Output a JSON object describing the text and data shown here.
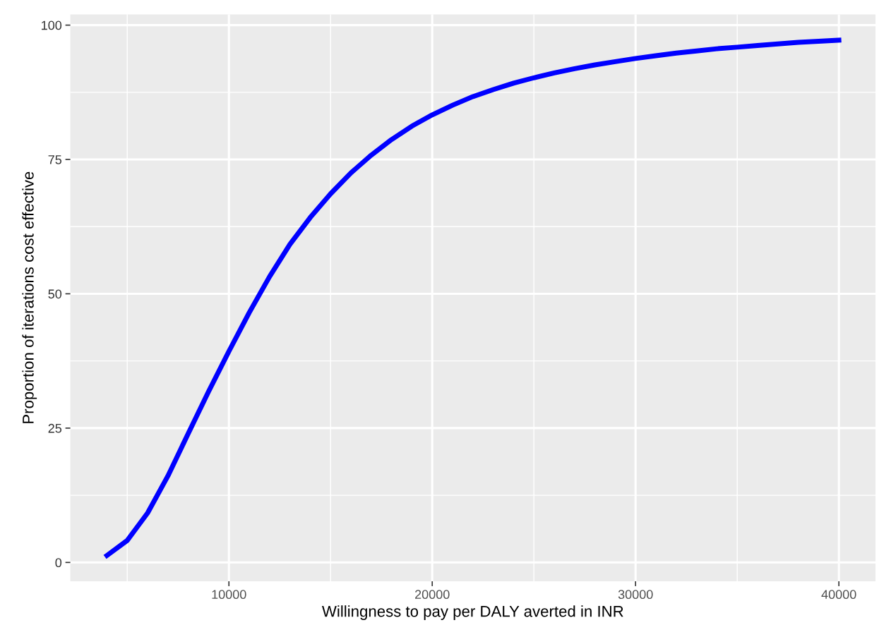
{
  "chart_data": {
    "type": "line",
    "xlabel": "Willingness to pay per DALY averted in INR",
    "ylabel": "Proportion of iterations cost effective",
    "x": [
      4000,
      5000,
      6000,
      7000,
      8000,
      9000,
      10000,
      11000,
      12000,
      13000,
      14000,
      15000,
      16000,
      17000,
      18000,
      19000,
      20000,
      21000,
      22000,
      23000,
      24000,
      25000,
      26000,
      27000,
      28000,
      29000,
      30000,
      31000,
      32000,
      33000,
      34000,
      35000,
      36000,
      37000,
      38000,
      39000,
      40000
    ],
    "series": [
      {
        "color": "#0000ff",
        "values": [
          1.3,
          4.1,
          9.2,
          16.1,
          24,
          31.8,
          39.3,
          46.5,
          53.2,
          59.2,
          64.2,
          68.6,
          72.5,
          75.8,
          78.7,
          81.2,
          83.3,
          85.1,
          86.7,
          88.0,
          89.2,
          90.2,
          91.1,
          91.9,
          92.6,
          93.2,
          93.8,
          94.3,
          94.8,
          95.2,
          95.6,
          95.9,
          96.2,
          96.5,
          96.8,
          97.0,
          97.2
        ]
      }
    ],
    "xlim": [
      2200,
      41800
    ],
    "ylim": [
      -3.5,
      102
    ],
    "xticks": [
      10000,
      20000,
      30000,
      40000
    ],
    "yticks": [
      0,
      25,
      50,
      75,
      100
    ],
    "grid": true,
    "legend": false,
    "marker": "none",
    "line_style": "solid"
  }
}
